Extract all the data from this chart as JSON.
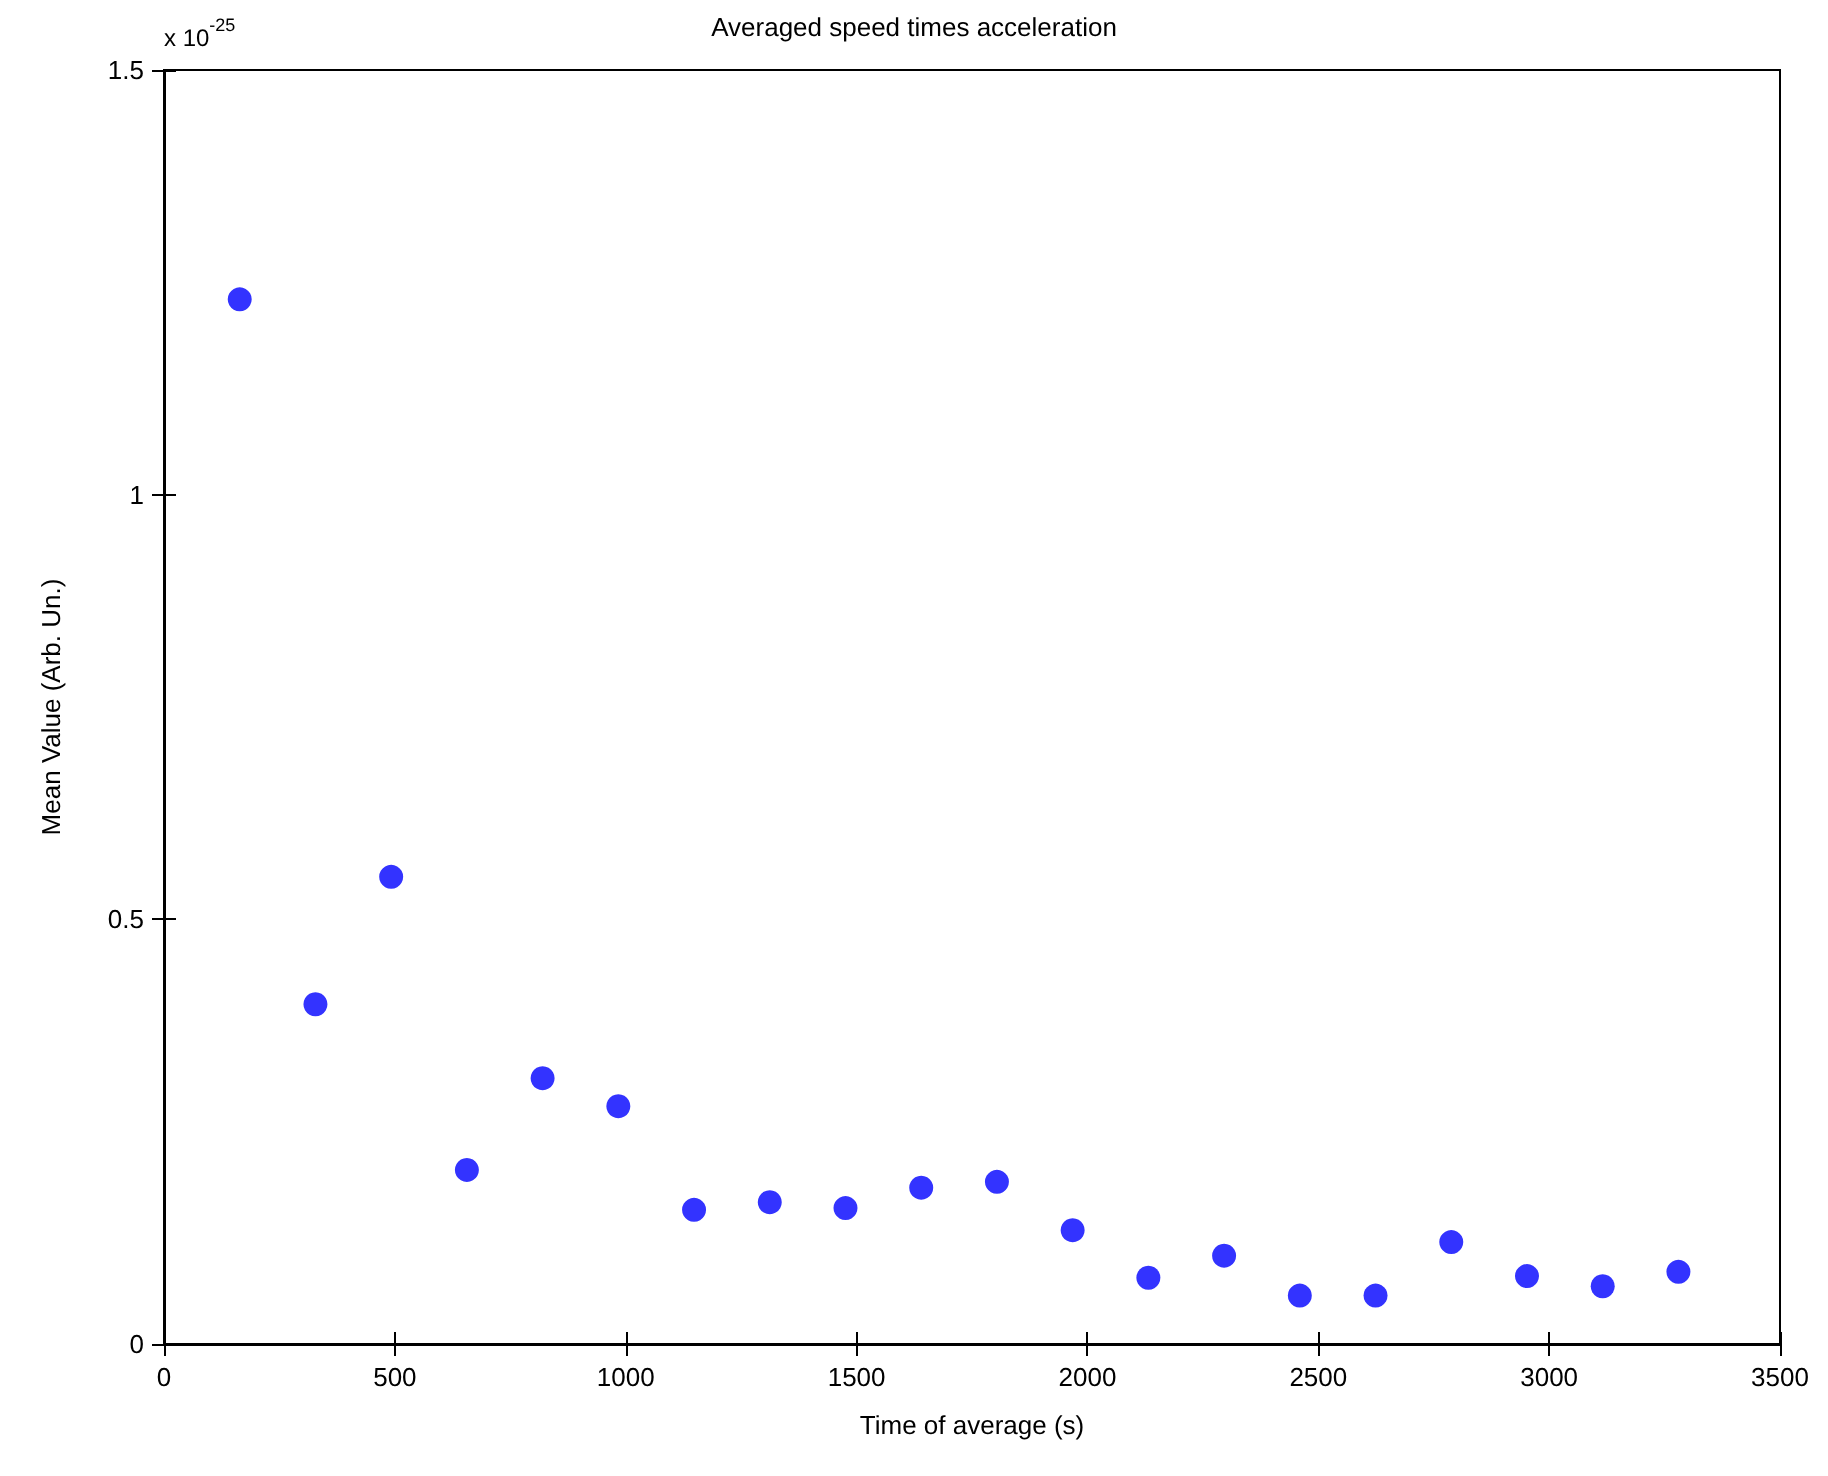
{
  "chart_data": {
    "type": "scatter",
    "title": "Averaged speed times acceleration",
    "xlabel": "Time of average (s)",
    "ylabel": "Mean Value (Arb. Un.)",
    "annotations": [
      "x 10$^{-25}$"
    ],
    "x": [
      164,
      328,
      492,
      656,
      820,
      984,
      1148,
      1312,
      1476,
      1640,
      1804,
      1968,
      2132,
      2296,
      2460,
      2624,
      2788,
      2952,
      3116,
      3280
    ],
    "series": [
      {
        "color": "#0000ff",
        "values": [
          1.23,
          0.4,
          0.55,
          0.205,
          0.313,
          0.28,
          0.158,
          0.167,
          0.16,
          0.184,
          0.191,
          0.134,
          0.078,
          0.104,
          0.057,
          0.057,
          0.12,
          0.08,
          0.068,
          0.085
        ]
      }
    ],
    "xlim": [
      0,
      3500
    ],
    "xticks": [
      0,
      500,
      1000,
      1500,
      2000,
      2500,
      3000,
      3500
    ],
    "ylim": [
      0,
      1.5
    ],
    "yticks": [
      0,
      0.5,
      1,
      1.5
    ],
    "grid": false,
    "marker": "circle"
  }
}
